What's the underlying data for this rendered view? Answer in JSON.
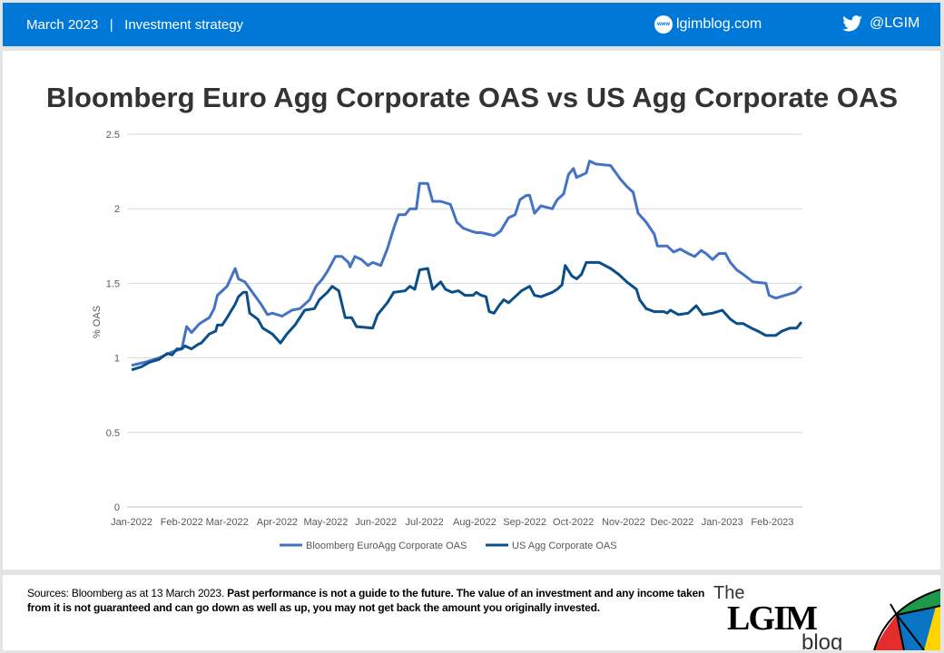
{
  "header": {
    "date": "March 2023",
    "separator": "|",
    "category": "Investment strategy",
    "website": "lgimblog.com",
    "website_icon": "www-globe-icon",
    "twitter": "@LGIM",
    "twitter_icon": "twitter-bird-icon",
    "color": "#0078d7"
  },
  "footer": {
    "sources": "Sources: Bloomberg as at 13 March 2023. ",
    "disclaimer": "Past performance is not a guide to the future. The value of an investment and any income taken from it is not guaranteed and can go down as well as up,  you may not get back the amount you originally  invested.",
    "logo": {
      "the": "The",
      "name": "LGIM",
      "blog": "blog"
    }
  },
  "chart_data": {
    "type": "line",
    "title": "Bloomberg Euro Agg Corporate OAS vs US Agg Corporate OAS",
    "xlabel": "",
    "ylabel": "% OAS",
    "ylim": [
      0,
      2.5
    ],
    "yticks": [
      "0",
      "0.5",
      "1",
      "1.5",
      "2",
      "2.5"
    ],
    "xticks": [
      "Jan-2022",
      "Feb-2022",
      "Mar-2022",
      "Apr-2022",
      "May-2022",
      "Jun-2022",
      "Jul-2022",
      "Aug-2022",
      "Sep-2022",
      "Oct-2022",
      "Nov-2022",
      "Dec-2022",
      "Jan-2023",
      "Feb-2023"
    ],
    "xlim": [
      "2022-01-01",
      "2023-02-19"
    ],
    "grid": "horizontal",
    "legend": "bottom",
    "series": [
      {
        "name": "Bloomberg EuroAgg Corporate OAS",
        "color": "#4472c4",
        "points": [
          [
            "2022-01-01",
            0.95
          ],
          [
            "2022-01-09",
            0.97
          ],
          [
            "2022-01-18",
            1.0
          ],
          [
            "2022-01-26",
            1.04
          ],
          [
            "2022-02-01",
            1.06
          ],
          [
            "2022-02-04",
            1.21
          ],
          [
            "2022-02-07",
            1.17
          ],
          [
            "2022-02-12",
            1.23
          ],
          [
            "2022-02-18",
            1.27
          ],
          [
            "2022-02-21",
            1.33
          ],
          [
            "2022-02-23",
            1.42
          ],
          [
            "2022-03-01",
            1.48
          ],
          [
            "2022-03-06",
            1.6
          ],
          [
            "2022-03-08",
            1.53
          ],
          [
            "2022-03-12",
            1.51
          ],
          [
            "2022-03-18",
            1.42
          ],
          [
            "2022-03-22",
            1.36
          ],
          [
            "2022-03-26",
            1.29
          ],
          [
            "2022-03-29",
            1.3
          ],
          [
            "2022-04-04",
            1.28
          ],
          [
            "2022-04-10",
            1.32
          ],
          [
            "2022-04-15",
            1.33
          ],
          [
            "2022-04-21",
            1.39
          ],
          [
            "2022-04-25",
            1.48
          ],
          [
            "2022-04-29",
            1.53
          ],
          [
            "2022-05-02",
            1.58
          ],
          [
            "2022-05-07",
            1.68
          ],
          [
            "2022-05-11",
            1.68
          ],
          [
            "2022-05-15",
            1.64
          ],
          [
            "2022-05-16",
            1.61
          ],
          [
            "2022-05-19",
            1.68
          ],
          [
            "2022-05-23",
            1.66
          ],
          [
            "2022-05-27",
            1.62
          ],
          [
            "2022-05-30",
            1.64
          ],
          [
            "2022-06-04",
            1.62
          ],
          [
            "2022-06-08",
            1.73
          ],
          [
            "2022-06-12",
            1.87
          ],
          [
            "2022-06-15",
            1.96
          ],
          [
            "2022-06-19",
            1.96
          ],
          [
            "2022-06-22",
            2.0
          ],
          [
            "2022-06-26",
            2.0
          ],
          [
            "2022-06-28",
            2.17
          ],
          [
            "2022-07-03",
            2.17
          ],
          [
            "2022-07-06",
            2.05
          ],
          [
            "2022-07-11",
            2.05
          ],
          [
            "2022-07-17",
            2.03
          ],
          [
            "2022-07-21",
            1.91
          ],
          [
            "2022-07-25",
            1.87
          ],
          [
            "2022-07-30",
            1.85
          ],
          [
            "2022-08-02",
            1.84
          ],
          [
            "2022-08-05",
            1.84
          ],
          [
            "2022-08-09",
            1.83
          ],
          [
            "2022-08-13",
            1.82
          ],
          [
            "2022-08-17",
            1.85
          ],
          [
            "2022-08-22",
            1.94
          ],
          [
            "2022-08-26",
            1.96
          ],
          [
            "2022-08-29",
            2.06
          ],
          [
            "2022-09-02",
            2.09
          ],
          [
            "2022-09-04",
            2.09
          ],
          [
            "2022-09-07",
            1.97
          ],
          [
            "2022-09-11",
            2.02
          ],
          [
            "2022-09-18",
            2.0
          ],
          [
            "2022-09-21",
            2.06
          ],
          [
            "2022-09-25",
            2.1
          ],
          [
            "2022-09-28",
            2.23
          ],
          [
            "2022-10-01",
            2.27
          ],
          [
            "2022-10-03",
            2.21
          ],
          [
            "2022-10-09",
            2.24
          ],
          [
            "2022-10-11",
            2.32
          ],
          [
            "2022-10-15",
            2.3
          ],
          [
            "2022-10-24",
            2.29
          ],
          [
            "2022-10-30",
            2.2
          ],
          [
            "2022-11-03",
            2.15
          ],
          [
            "2022-11-07",
            2.11
          ],
          [
            "2022-11-10",
            1.97
          ],
          [
            "2022-11-15",
            1.91
          ],
          [
            "2022-11-20",
            1.83
          ],
          [
            "2022-11-22",
            1.75
          ],
          [
            "2022-11-28",
            1.75
          ],
          [
            "2022-12-02",
            1.71
          ],
          [
            "2022-12-06",
            1.73
          ],
          [
            "2022-12-11",
            1.7
          ],
          [
            "2022-12-15",
            1.68
          ],
          [
            "2022-12-19",
            1.72
          ],
          [
            "2022-12-22",
            1.7
          ],
          [
            "2022-12-26",
            1.66
          ],
          [
            "2022-12-30",
            1.7
          ],
          [
            "2023-01-03",
            1.7
          ],
          [
            "2023-01-06",
            1.64
          ],
          [
            "2023-01-10",
            1.59
          ],
          [
            "2023-01-14",
            1.56
          ],
          [
            "2023-01-20",
            1.51
          ],
          [
            "2023-01-28",
            1.5
          ],
          [
            "2023-01-30",
            1.42
          ],
          [
            "2023-02-03",
            1.4
          ],
          [
            "2023-02-09",
            1.42
          ],
          [
            "2023-02-15",
            1.44
          ],
          [
            "2023-02-19",
            1.48
          ]
        ]
      },
      {
        "name": "US Agg Corporate OAS",
        "color": "#0b4f8a",
        "points": [
          [
            "2022-01-01",
            0.92
          ],
          [
            "2022-01-07",
            0.94
          ],
          [
            "2022-01-12",
            0.97
          ],
          [
            "2022-01-18",
            0.99
          ],
          [
            "2022-01-23",
            1.03
          ],
          [
            "2022-01-26",
            1.02
          ],
          [
            "2022-01-29",
            1.06
          ],
          [
            "2022-02-01",
            1.06
          ],
          [
            "2022-02-03",
            1.08
          ],
          [
            "2022-02-07",
            1.06
          ],
          [
            "2022-02-11",
            1.09
          ],
          [
            "2022-02-13",
            1.1
          ],
          [
            "2022-02-18",
            1.16
          ],
          [
            "2022-02-22",
            1.18
          ],
          [
            "2022-02-23",
            1.22
          ],
          [
            "2022-02-26",
            1.22
          ],
          [
            "2022-03-01",
            1.27
          ],
          [
            "2022-03-06",
            1.36
          ],
          [
            "2022-03-08",
            1.41
          ],
          [
            "2022-03-11",
            1.44
          ],
          [
            "2022-03-13",
            1.44
          ],
          [
            "2022-03-15",
            1.3
          ],
          [
            "2022-03-20",
            1.26
          ],
          [
            "2022-03-23",
            1.2
          ],
          [
            "2022-03-29",
            1.16
          ],
          [
            "2022-04-03",
            1.1
          ],
          [
            "2022-04-07",
            1.16
          ],
          [
            "2022-04-12",
            1.22
          ],
          [
            "2022-04-18",
            1.32
          ],
          [
            "2022-04-24",
            1.33
          ],
          [
            "2022-04-27",
            1.39
          ],
          [
            "2022-05-02",
            1.44
          ],
          [
            "2022-05-05",
            1.48
          ],
          [
            "2022-05-09",
            1.45
          ],
          [
            "2022-05-13",
            1.27
          ],
          [
            "2022-05-17",
            1.27
          ],
          [
            "2022-05-20",
            1.21
          ],
          [
            "2022-05-30",
            1.2
          ],
          [
            "2022-06-02",
            1.29
          ],
          [
            "2022-06-08",
            1.37
          ],
          [
            "2022-06-12",
            1.44
          ],
          [
            "2022-06-19",
            1.45
          ],
          [
            "2022-06-22",
            1.48
          ],
          [
            "2022-06-25",
            1.46
          ],
          [
            "2022-06-28",
            1.59
          ],
          [
            "2022-07-03",
            1.6
          ],
          [
            "2022-07-06",
            1.46
          ],
          [
            "2022-07-11",
            1.51
          ],
          [
            "2022-07-14",
            1.46
          ],
          [
            "2022-07-18",
            1.44
          ],
          [
            "2022-07-22",
            1.45
          ],
          [
            "2022-07-26",
            1.42
          ],
          [
            "2022-07-31",
            1.42
          ],
          [
            "2022-08-02",
            1.44
          ],
          [
            "2022-08-05",
            1.42
          ],
          [
            "2022-08-08",
            1.41
          ],
          [
            "2022-08-10",
            1.31
          ],
          [
            "2022-08-13",
            1.3
          ],
          [
            "2022-08-16",
            1.35
          ],
          [
            "2022-08-19",
            1.39
          ],
          [
            "2022-08-22",
            1.37
          ],
          [
            "2022-08-26",
            1.41
          ],
          [
            "2022-08-30",
            1.45
          ],
          [
            "2022-09-04",
            1.48
          ],
          [
            "2022-09-07",
            1.42
          ],
          [
            "2022-09-11",
            1.41
          ],
          [
            "2022-09-18",
            1.44
          ],
          [
            "2022-09-21",
            1.46
          ],
          [
            "2022-09-24",
            1.49
          ],
          [
            "2022-09-26",
            1.62
          ],
          [
            "2022-09-30",
            1.55
          ],
          [
            "2022-10-03",
            1.53
          ],
          [
            "2022-10-06",
            1.56
          ],
          [
            "2022-10-09",
            1.64
          ],
          [
            "2022-10-17",
            1.64
          ],
          [
            "2022-10-24",
            1.6
          ],
          [
            "2022-10-29",
            1.56
          ],
          [
            "2022-11-03",
            1.51
          ],
          [
            "2022-11-09",
            1.46
          ],
          [
            "2022-11-11",
            1.39
          ],
          [
            "2022-11-15",
            1.33
          ],
          [
            "2022-11-20",
            1.31
          ],
          [
            "2022-11-26",
            1.31
          ],
          [
            "2022-11-28",
            1.3
          ],
          [
            "2022-11-30",
            1.32
          ],
          [
            "2022-12-05",
            1.29
          ],
          [
            "2022-12-11",
            1.3
          ],
          [
            "2022-12-16",
            1.35
          ],
          [
            "2022-12-20",
            1.29
          ],
          [
            "2022-12-26",
            1.3
          ],
          [
            "2023-01-01",
            1.32
          ],
          [
            "2023-01-06",
            1.26
          ],
          [
            "2023-01-10",
            1.23
          ],
          [
            "2023-01-14",
            1.23
          ],
          [
            "2023-01-19",
            1.2
          ],
          [
            "2023-01-23",
            1.18
          ],
          [
            "2023-01-28",
            1.15
          ],
          [
            "2023-02-03",
            1.15
          ],
          [
            "2023-02-07",
            1.18
          ],
          [
            "2023-02-12",
            1.2
          ],
          [
            "2023-02-16",
            1.2
          ],
          [
            "2023-02-19",
            1.24
          ]
        ]
      }
    ]
  }
}
